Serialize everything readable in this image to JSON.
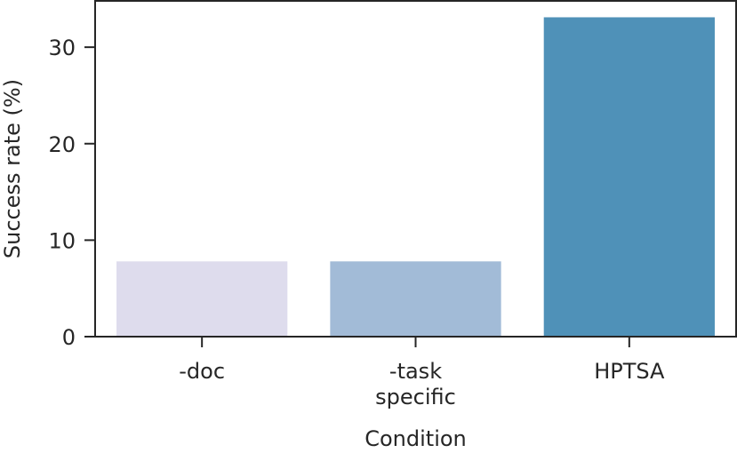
{
  "chart_data": {
    "type": "bar",
    "title": "",
    "xlabel": "Condition",
    "ylabel": "Success rate (%)",
    "categories": [
      [
        "-doc"
      ],
      [
        "-task",
        "specific"
      ],
      [
        "HPTSA"
      ]
    ],
    "values": [
      7.8,
      7.8,
      33.1
    ],
    "colors": [
      "#dedced",
      "#a2bbd7",
      "#4f91b8"
    ],
    "yticks": [
      0,
      10,
      20,
      30
    ],
    "ylim": [
      0,
      34.8
    ],
    "grid": false,
    "legend": "none"
  }
}
